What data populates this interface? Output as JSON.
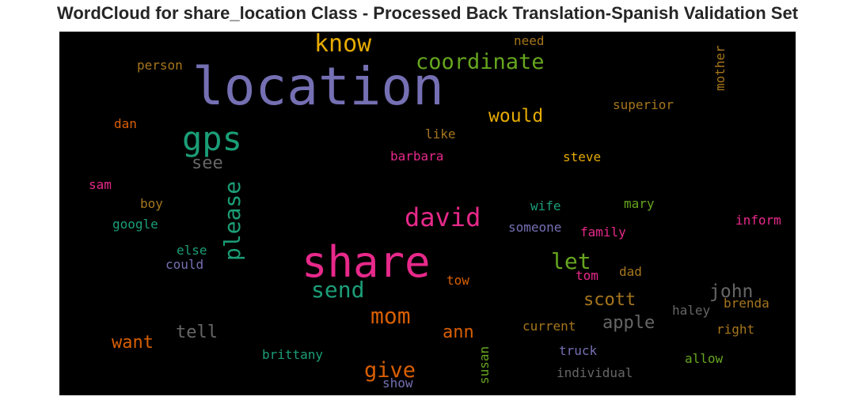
{
  "chart_data": {
    "type": "wordcloud",
    "title": "WordCloud for share_location Class - Processed Back Translation-Spanish Validation Set",
    "background": "#000000",
    "words": [
      {
        "text": "location",
        "color": "#7570b3"
      },
      {
        "text": "share",
        "color": "#e7298a"
      },
      {
        "text": "gps",
        "color": "#1b9e77"
      },
      {
        "text": "know",
        "color": "#e6ab02"
      },
      {
        "text": "coordinate",
        "color": "#66a61e"
      },
      {
        "text": "david",
        "color": "#e7298a"
      },
      {
        "text": "please",
        "color": "#1b9e77"
      },
      {
        "text": "let",
        "color": "#66a61e"
      },
      {
        "text": "send",
        "color": "#1b9e77"
      },
      {
        "text": "mom",
        "color": "#d95f02"
      },
      {
        "text": "would",
        "color": "#e6ab02"
      },
      {
        "text": "see",
        "color": "#666666"
      },
      {
        "text": "john",
        "color": "#666666"
      },
      {
        "text": "scott",
        "color": "#a6761d"
      },
      {
        "text": "give",
        "color": "#d95f02"
      },
      {
        "text": "apple",
        "color": "#666666"
      },
      {
        "text": "tell",
        "color": "#666666"
      },
      {
        "text": "ann",
        "color": "#d95f02"
      },
      {
        "text": "want",
        "color": "#d95f02"
      },
      {
        "text": "need",
        "color": "#a6761d"
      },
      {
        "text": "person",
        "color": "#a6761d"
      },
      {
        "text": "mother",
        "color": "#a6761d"
      },
      {
        "text": "superior",
        "color": "#a6761d"
      },
      {
        "text": "dan",
        "color": "#d95f02"
      },
      {
        "text": "like",
        "color": "#a6761d"
      },
      {
        "text": "barbara",
        "color": "#e7298a"
      },
      {
        "text": "steve",
        "color": "#e6ab02"
      },
      {
        "text": "sam",
        "color": "#e7298a"
      },
      {
        "text": "boy",
        "color": "#a6761d"
      },
      {
        "text": "wife",
        "color": "#1b9e77"
      },
      {
        "text": "mary",
        "color": "#66a61e"
      },
      {
        "text": "inform",
        "color": "#e7298a"
      },
      {
        "text": "google",
        "color": "#1b9e77"
      },
      {
        "text": "someone",
        "color": "#7570b3"
      },
      {
        "text": "family",
        "color": "#e7298a"
      },
      {
        "text": "else",
        "color": "#1b9e77"
      },
      {
        "text": "could",
        "color": "#7570b3"
      },
      {
        "text": "tom",
        "color": "#e7298a"
      },
      {
        "text": "dad",
        "color": "#a6761d"
      },
      {
        "text": "tow",
        "color": "#d95f02"
      },
      {
        "text": "haley",
        "color": "#666666"
      },
      {
        "text": "brenda",
        "color": "#a6761d"
      },
      {
        "text": "current",
        "color": "#a6761d"
      },
      {
        "text": "right",
        "color": "#a6761d"
      },
      {
        "text": "truck",
        "color": "#7570b3"
      },
      {
        "text": "brittany",
        "color": "#1b9e77"
      },
      {
        "text": "susan",
        "color": "#66a61e"
      },
      {
        "text": "allow",
        "color": "#66a61e"
      },
      {
        "text": "individual",
        "color": "#666666"
      },
      {
        "text": "show",
        "color": "#7570b3"
      }
    ]
  }
}
